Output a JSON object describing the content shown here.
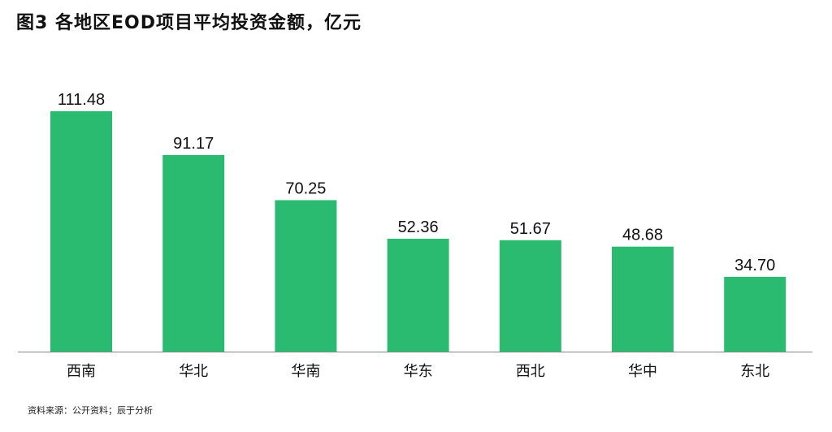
{
  "title": "图3 各地区EOD项目平均投资金额，亿元",
  "source": "资料来源：公开资料；辰于分析",
  "chart_data": {
    "type": "bar",
    "title": "图3 各地区EOD项目平均投资金额，亿元",
    "xlabel": "",
    "ylabel": "",
    "categories": [
      "西南",
      "华北",
      "华南",
      "华东",
      "西北",
      "华中",
      "东北"
    ],
    "values": [
      111.48,
      91.17,
      70.25,
      52.36,
      51.67,
      48.68,
      34.7
    ],
    "value_labels": [
      "111.48",
      "91.17",
      "70.25",
      "52.36",
      "51.67",
      "48.68",
      "34.70"
    ],
    "ylim": [
      0,
      111.48
    ],
    "grid": false,
    "legend": "none",
    "bar_color": "#2bbb70",
    "axis_color": "#888888"
  }
}
